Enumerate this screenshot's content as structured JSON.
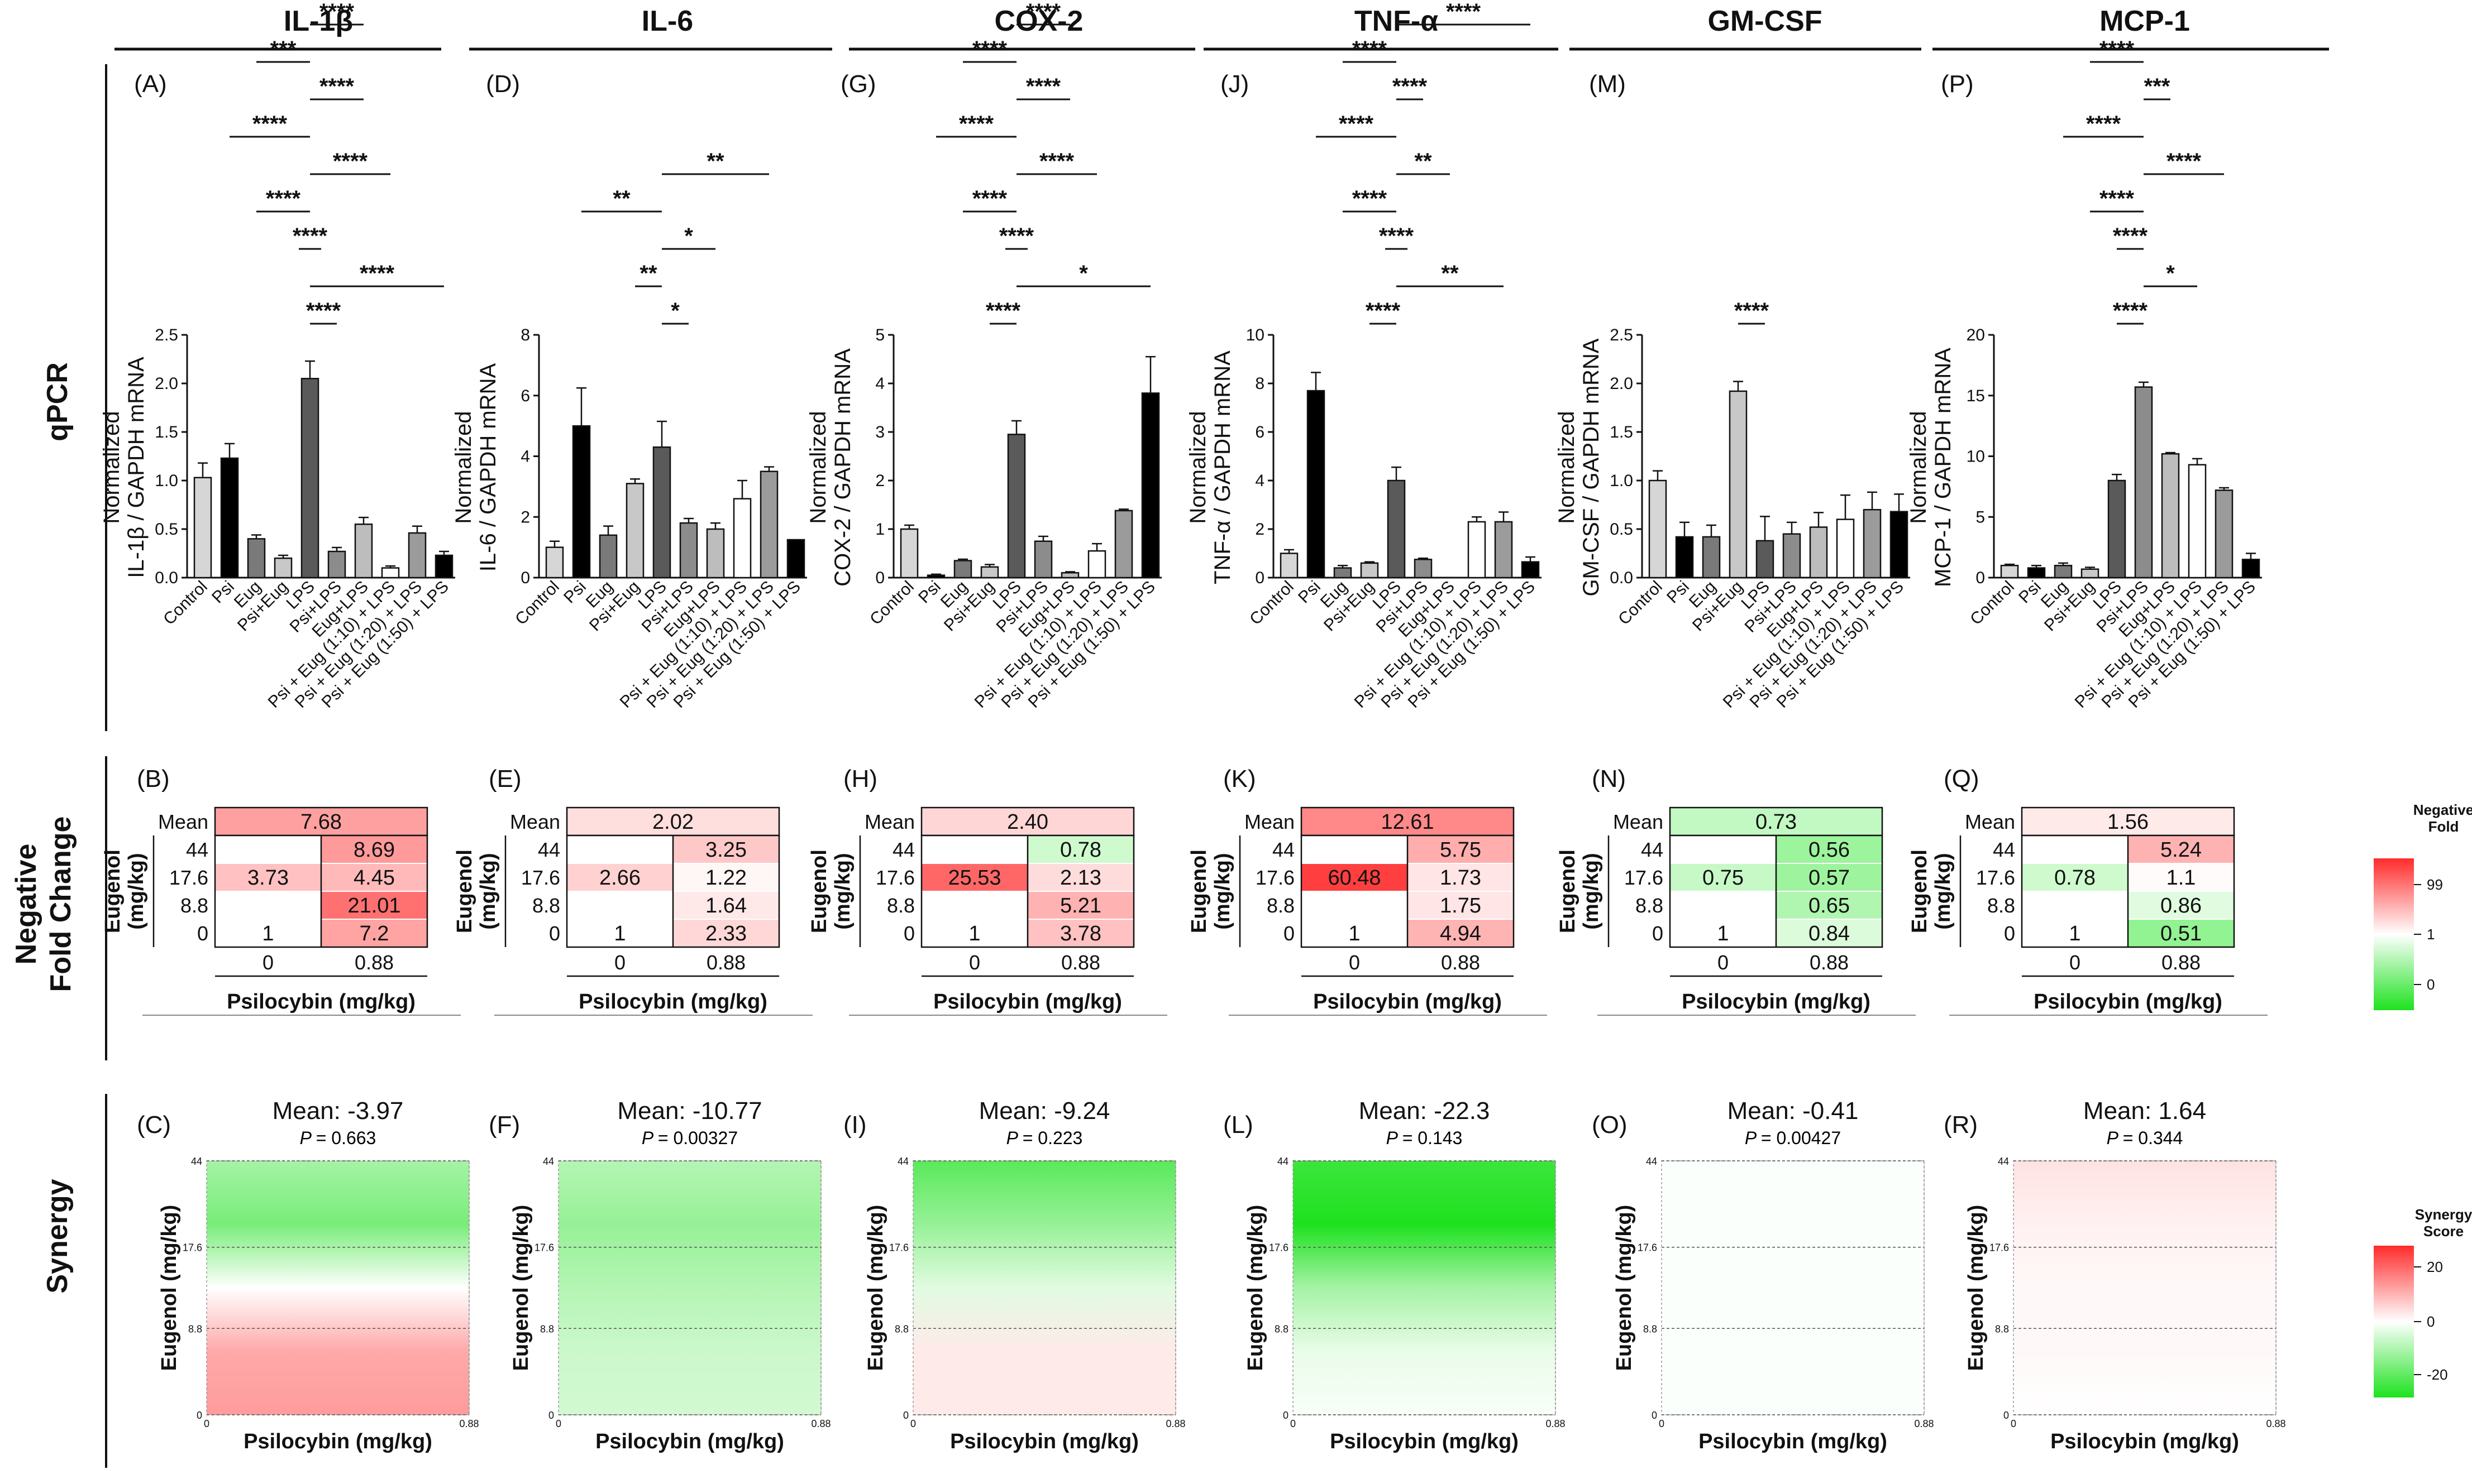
{
  "figure": {
    "row_labels": [
      "qPCR",
      "Negative\nFold Change",
      "Synergy"
    ],
    "columns": [
      "IL-1β",
      "IL-6",
      "COX-2",
      "TNF-α",
      "GM-CSF",
      "MCP-1"
    ],
    "bar_categories": [
      "Control",
      "Psi",
      "Eug",
      "Psi+Eug",
      "LPS",
      "Psi+LPS",
      "Eug+LPS",
      "Psi + Eug (1:10) + LPS",
      "Psi + Eug (1:20) + LPS",
      "Psi + Eug (1:50) + LPS"
    ],
    "bar_colors": [
      "#d6d6d6",
      "#000000",
      "#7a7a7a",
      "#c8c8c8",
      "#5a5a5a",
      "#8c8c8c",
      "#bdbdbd",
      "#ffffff",
      "#9b9b9b",
      "#000000"
    ]
  },
  "chart_data": [
    {
      "type": "bar",
      "panel": "(A)",
      "column": "IL-1β",
      "ylabel": "Normalized\nIL-1β / GAPDH mRNA",
      "ylim": [
        0,
        2.5
      ],
      "yticks": [
        "0.0",
        "0.5",
        "1.0",
        "1.5",
        "2.0",
        "2.5"
      ],
      "values": [
        1.03,
        1.23,
        0.4,
        0.2,
        2.05,
        0.27,
        0.55,
        0.1,
        0.46,
        0.23
      ],
      "errors": [
        0.15,
        0.15,
        0.04,
        0.03,
        0.18,
        0.04,
        0.07,
        0.02,
        0.07,
        0.04
      ],
      "sig": [
        {
          "from": 4,
          "to": 5,
          "label": "****"
        },
        {
          "from": 4,
          "to": 9,
          "label": "****"
        },
        {
          "from": 4,
          "to": 4.01,
          "label": "****"
        },
        {
          "from": 2,
          "to": 4,
          "label": "****"
        },
        {
          "from": 4,
          "to": 7,
          "label": "****"
        },
        {
          "from": 1,
          "to": 4,
          "label": "****"
        },
        {
          "from": 4,
          "to": 6,
          "label": "****"
        },
        {
          "from": 2,
          "to": 4,
          "label": "***"
        },
        {
          "from": 4,
          "to": 6,
          "label": "****"
        }
      ]
    },
    {
      "type": "bar",
      "panel": "(D)",
      "column": "IL-6",
      "ylabel": "Normalized\nIL-6 / GAPDH mRNA",
      "ylim": [
        0,
        8
      ],
      "yticks": [
        "0",
        "2",
        "4",
        "6",
        "8"
      ],
      "values": [
        1.0,
        5.0,
        1.4,
        3.1,
        4.3,
        1.8,
        1.6,
        2.6,
        3.5,
        1.25
      ],
      "errors": [
        0.2,
        1.25,
        0.3,
        0.15,
        0.85,
        0.15,
        0.2,
        0.6,
        0.15,
        0.0
      ],
      "sig": [
        {
          "from": 4,
          "to": 5,
          "label": "*"
        },
        {
          "from": 3,
          "to": 4,
          "label": "**"
        },
        {
          "from": 4,
          "to": 6,
          "label": "*"
        },
        {
          "from": 1,
          "to": 4,
          "label": "**"
        },
        {
          "from": 4,
          "to": 8,
          "label": "**"
        }
      ]
    },
    {
      "type": "bar",
      "panel": "(G)",
      "column": "COX-2",
      "ylabel": "Normalized\nCOX-2 / GAPDH mRNA",
      "ylim": [
        0,
        5
      ],
      "yticks": [
        "0",
        "1",
        "2",
        "3",
        "4",
        "5"
      ],
      "values": [
        1.0,
        0.05,
        0.35,
        0.22,
        2.95,
        0.75,
        0.1,
        0.55,
        1.38,
        3.8
      ],
      "errors": [
        0.08,
        0.02,
        0.03,
        0.05,
        0.28,
        0.1,
        0.02,
        0.15,
        0.03,
        0.75
      ],
      "sig": [
        {
          "from": 3,
          "to": 4,
          "label": "****"
        },
        {
          "from": 4,
          "to": 9,
          "label": "*"
        },
        {
          "from": 4,
          "to": 4.01,
          "label": "****"
        },
        {
          "from": 2,
          "to": 4,
          "label": "****"
        },
        {
          "from": 4,
          "to": 7,
          "label": "****"
        },
        {
          "from": 1,
          "to": 4,
          "label": "****"
        },
        {
          "from": 4,
          "to": 6,
          "label": "****"
        },
        {
          "from": 2,
          "to": 4,
          "label": "****"
        },
        {
          "from": 4,
          "to": 6,
          "label": "****"
        }
      ]
    },
    {
      "type": "bar",
      "panel": "(J)",
      "column": "TNF-α",
      "ylabel": "Normalized\nTNF-α / GAPDH mRNA",
      "ylim": [
        0,
        10
      ],
      "yticks": [
        "0",
        "2",
        "4",
        "6",
        "8",
        "10"
      ],
      "values": [
        1.0,
        7.7,
        0.4,
        0.6,
        4.0,
        0.75,
        0.0,
        2.3,
        2.3,
        0.65
      ],
      "errors": [
        0.15,
        0.75,
        0.1,
        0.05,
        0.55,
        0.05,
        0.0,
        0.2,
        0.4,
        0.2
      ],
      "sig": [
        {
          "from": 3,
          "to": 4,
          "label": "****"
        },
        {
          "from": 4,
          "to": 8,
          "label": "**"
        },
        {
          "from": 4,
          "to": 4.01,
          "label": "****"
        },
        {
          "from": 2,
          "to": 4,
          "label": "****"
        },
        {
          "from": 4,
          "to": 6,
          "label": "**"
        },
        {
          "from": 1,
          "to": 4,
          "label": "****"
        },
        {
          "from": 4,
          "to": 5,
          "label": "****"
        },
        {
          "from": 2,
          "to": 4,
          "label": "****"
        },
        {
          "from": 4,
          "to": 9,
          "label": "****"
        }
      ]
    },
    {
      "type": "bar",
      "panel": "(M)",
      "column": "GM-CSF",
      "ylabel": "Normalized\nGM-CSF / GAPDH mRNA",
      "ylim": [
        0,
        2.5
      ],
      "yticks": [
        "0.0",
        "0.5",
        "1.0",
        "1.5",
        "2.0",
        "2.5"
      ],
      "values": [
        1.0,
        0.42,
        0.42,
        1.92,
        0.38,
        0.45,
        0.52,
        0.6,
        0.7,
        0.68
      ],
      "errors": [
        0.1,
        0.15,
        0.12,
        0.1,
        0.25,
        0.12,
        0.15,
        0.25,
        0.18,
        0.18
      ],
      "sig": [
        {
          "from": 3,
          "to": 4,
          "label": "****"
        }
      ]
    },
    {
      "type": "bar",
      "panel": "(P)",
      "column": "MCP-1",
      "ylabel": "Normalized\nMCP-1 / GAPDH mRNA",
      "ylim": [
        0,
        20
      ],
      "yticks": [
        "0",
        "5",
        "10",
        "15",
        "20"
      ],
      "values": [
        1.0,
        0.8,
        1.0,
        0.7,
        8.0,
        15.7,
        10.2,
        9.3,
        7.2,
        1.5
      ],
      "errors": [
        0.1,
        0.2,
        0.2,
        0.15,
        0.5,
        0.4,
        0.1,
        0.5,
        0.2,
        0.5
      ],
      "sig": [
        {
          "from": 4,
          "to": 5,
          "label": "****"
        },
        {
          "from": 5,
          "to": 7,
          "label": "*"
        },
        {
          "from": 4,
          "to": 5.01,
          "label": "****"
        },
        {
          "from": 3,
          "to": 5,
          "label": "****"
        },
        {
          "from": 5,
          "to": 8,
          "label": "****"
        },
        {
          "from": 2,
          "to": 5,
          "label": "****"
        },
        {
          "from": 5,
          "to": 6,
          "label": "***"
        },
        {
          "from": 3,
          "to": 5,
          "label": "****"
        }
      ]
    }
  ],
  "heatmaps": {
    "ylabel": "Eugenol\n(mg/kg)",
    "xlabel": "Psilocybin (mg/kg)",
    "row_labels": [
      "Mean",
      "44",
      "17.6",
      "8.8",
      "0"
    ],
    "col_labels": [
      "0",
      "0.88"
    ],
    "panels": [
      {
        "panel": "(B)",
        "mean": "7.68",
        "mean_v": 7.68,
        "cells": [
          [
            "",
            "8.69"
          ],
          [
            "3.73",
            "4.45"
          ],
          [
            "",
            "21.01"
          ],
          [
            "1",
            "7.2"
          ]
        ],
        "vals": [
          [
            null,
            8.69
          ],
          [
            3.73,
            4.45
          ],
          [
            null,
            21.01
          ],
          [
            1,
            7.2
          ]
        ]
      },
      {
        "panel": "(E)",
        "mean": "2.02",
        "mean_v": 2.02,
        "cells": [
          [
            "",
            "3.25"
          ],
          [
            "2.66",
            "1.22"
          ],
          [
            "",
            "1.64"
          ],
          [
            "1",
            "2.33"
          ]
        ],
        "vals": [
          [
            null,
            3.25
          ],
          [
            2.66,
            1.22
          ],
          [
            null,
            1.64
          ],
          [
            1,
            2.33
          ]
        ]
      },
      {
        "panel": "(H)",
        "mean": "2.40",
        "mean_v": 2.4,
        "cells": [
          [
            "",
            "0.78"
          ],
          [
            "25.53",
            "2.13"
          ],
          [
            "",
            "5.21"
          ],
          [
            "1",
            "3.78"
          ]
        ],
        "vals": [
          [
            null,
            0.78
          ],
          [
            25.53,
            2.13
          ],
          [
            null,
            5.21
          ],
          [
            1,
            3.78
          ]
        ]
      },
      {
        "panel": "(K)",
        "mean": "12.61",
        "mean_v": 12.61,
        "cells": [
          [
            "",
            "5.75"
          ],
          [
            "60.48",
            "1.73"
          ],
          [
            "",
            "1.75"
          ],
          [
            "1",
            "4.94"
          ]
        ],
        "vals": [
          [
            null,
            5.75
          ],
          [
            60.48,
            1.73
          ],
          [
            null,
            1.75
          ],
          [
            1,
            4.94
          ]
        ]
      },
      {
        "panel": "(N)",
        "mean": "0.73",
        "mean_v": 0.73,
        "cells": [
          [
            "",
            "0.56"
          ],
          [
            "0.75",
            "0.57"
          ],
          [
            "",
            "0.65"
          ],
          [
            "1",
            "0.84"
          ]
        ],
        "vals": [
          [
            null,
            0.56
          ],
          [
            0.75,
            0.57
          ],
          [
            null,
            0.65
          ],
          [
            1,
            0.84
          ]
        ]
      },
      {
        "panel": "(Q)",
        "mean": "1.56",
        "mean_v": 1.56,
        "cells": [
          [
            "",
            "5.24"
          ],
          [
            "0.78",
            "1.1"
          ],
          [
            "",
            "0.86"
          ],
          [
            "1",
            "0.51"
          ]
        ],
        "vals": [
          [
            null,
            5.24
          ],
          [
            0.78,
            1.1
          ],
          [
            null,
            0.86
          ],
          [
            1,
            0.51
          ]
        ]
      }
    ],
    "legend": {
      "title": "Negative\nFold",
      "ticks": [
        "99",
        "1",
        "0"
      ]
    }
  },
  "synergy": {
    "ylabel": "Eugenol (mg/kg)",
    "xlabel": "Psilocybin (mg/kg)",
    "yticks": [
      "44",
      "17.6",
      "8.8",
      "0"
    ],
    "xticks": [
      "0",
      "0.88"
    ],
    "panels": [
      {
        "panel": "(C)",
        "mean": "Mean: -3.97",
        "p": "= 0.663",
        "bands": [
          -12,
          -18,
          0,
          12,
          14
        ]
      },
      {
        "panel": "(F)",
        "mean": "Mean: -10.77",
        "p": "= 0.00327",
        "bands": [
          -10,
          -14,
          -10,
          -7,
          -6
        ]
      },
      {
        "panel": "(I)",
        "mean": "Mean: -9.24",
        "p": "= 0.223",
        "bands": [
          -22,
          -14,
          -4,
          3,
          3
        ]
      },
      {
        "panel": "(L)",
        "mean": "Mean: -22.3",
        "p": "= 0.143",
        "bands": [
          -26,
          -34,
          -12,
          -3,
          -1
        ]
      },
      {
        "panel": "(O)",
        "mean": "Mean: -0.41",
        "p": "= 0.00427",
        "bands": [
          -0.5,
          -0.5,
          -0.5,
          -0.5,
          -0.5
        ]
      },
      {
        "panel": "(R)",
        "mean": "Mean: 1.64",
        "p": "= 0.344",
        "bands": [
          4,
          2,
          1,
          1,
          0
        ]
      }
    ],
    "legend": {
      "title": "Synergy\nScore",
      "ticks": [
        "20",
        "0",
        "-20"
      ]
    }
  }
}
